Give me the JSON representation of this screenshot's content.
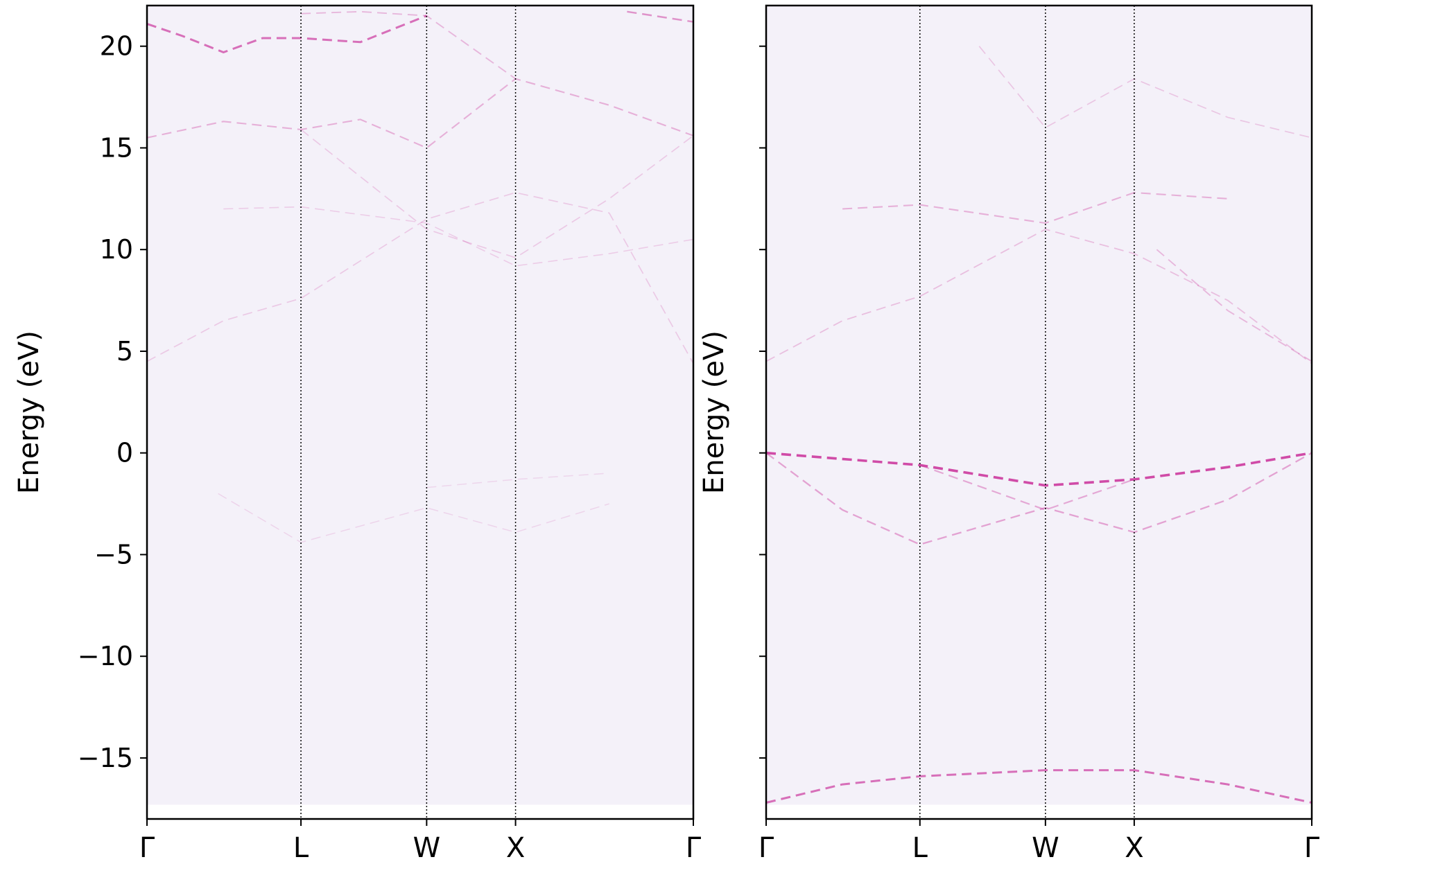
{
  "chart_data": [
    {
      "type": "heatmap",
      "panel": "left",
      "ylabel": "Energy (eV)",
      "xlabel": "",
      "title": "",
      "ylim": [
        -18.0,
        22.0
      ],
      "yticks": [
        20,
        15,
        10,
        5,
        0,
        -5,
        -10,
        -15
      ],
      "ytick_labels": [
        "20",
        "15",
        "10",
        "5",
        "0",
        "−5",
        "−10",
        "−15"
      ],
      "kpoints": [
        {
          "label": "Γ",
          "k": 0.0
        },
        {
          "label": "L",
          "k": 0.866
        },
        {
          "label": "W",
          "k": 1.573
        },
        {
          "label": "X",
          "k": 2.073
        },
        {
          "label": "Γ",
          "k": 3.073
        }
      ],
      "grid": "dotted vertical lines at high-symmetry points",
      "colormap": "white-to-magenta spectral weight",
      "background_color": "#f4f1f9",
      "intensity_color": "#cc3d9f",
      "data_floor_energy": -17.3,
      "bands": [
        {
          "name": "band-upper-a",
          "weight": 0.3,
          "points": [
            [
              0,
              15.5
            ],
            [
              0.43,
              16.3
            ],
            [
              0.866,
              15.9
            ],
            [
              1.2,
              16.4
            ],
            [
              1.573,
              15.0
            ],
            [
              2.073,
              18.4
            ],
            [
              2.6,
              17.1
            ],
            [
              3.073,
              15.6
            ]
          ]
        },
        {
          "name": "band-upper-b",
          "weight": 0.75,
          "points": [
            [
              0,
              21.1
            ],
            [
              0.2,
              20.5
            ],
            [
              0.43,
              19.7
            ],
            [
              0.65,
              20.4
            ],
            [
              0.866,
              20.4
            ],
            [
              1.2,
              20.2
            ],
            [
              1.573,
              21.5
            ]
          ]
        },
        {
          "name": "band-upper-c",
          "weight": 0.25,
          "points": [
            [
              0.866,
              21.6
            ],
            [
              1.2,
              21.7
            ],
            [
              1.573,
              21.5
            ],
            [
              2.073,
              18.4
            ]
          ]
        },
        {
          "name": "band-upper-d",
          "weight": 0.5,
          "points": [
            [
              2.7,
              21.7
            ],
            [
              3.073,
              21.2
            ]
          ]
        },
        {
          "name": "band-mid-a",
          "weight": 0.12,
          "points": [
            [
              0,
              4.5
            ],
            [
              0.43,
              6.5
            ],
            [
              0.866,
              7.6
            ],
            [
              1.573,
              11.5
            ],
            [
              2.073,
              12.8
            ],
            [
              2.6,
              11.8
            ],
            [
              3.073,
              4.4
            ]
          ]
        },
        {
          "name": "band-mid-b",
          "weight": 0.1,
          "points": [
            [
              0.43,
              12.0
            ],
            [
              0.866,
              12.1
            ],
            [
              1.573,
              11.3
            ],
            [
              2.073,
              9.2
            ],
            [
              2.6,
              9.8
            ],
            [
              3.073,
              10.5
            ]
          ]
        },
        {
          "name": "band-mid-c",
          "weight": 0.12,
          "points": [
            [
              0.866,
              15.9
            ],
            [
              1.573,
              11.0
            ],
            [
              2.073,
              9.6
            ],
            [
              2.6,
              12.5
            ],
            [
              3.073,
              15.6
            ]
          ]
        },
        {
          "name": "band-low-a",
          "weight": 0.05,
          "points": [
            [
              0.4,
              -2.0
            ],
            [
              0.866,
              -4.4
            ],
            [
              1.573,
              -2.7
            ],
            [
              2.073,
              -3.9
            ],
            [
              2.6,
              -2.5
            ]
          ]
        },
        {
          "name": "band-low-b",
          "weight": 0.04,
          "points": [
            [
              1.573,
              -1.7
            ],
            [
              2.073,
              -1.3
            ],
            [
              2.6,
              -1.0
            ]
          ]
        }
      ]
    },
    {
      "type": "heatmap",
      "panel": "right",
      "ylabel": "Energy (eV)",
      "xlabel": "",
      "title": "",
      "ylim": [
        -18.0,
        22.0
      ],
      "yticks": [
        20,
        15,
        10,
        5,
        0,
        -5,
        -10,
        -15
      ],
      "ytick_labels": [],
      "kpoints": [
        {
          "label": "Γ",
          "k": 0.0
        },
        {
          "label": "L",
          "k": 0.866
        },
        {
          "label": "W",
          "k": 1.573
        },
        {
          "label": "X",
          "k": 2.073
        },
        {
          "label": "Γ",
          "k": 3.073
        }
      ],
      "grid": "dotted vertical lines at high-symmetry points",
      "colormap": "white-to-magenta spectral weight",
      "background_color": "#f4f1f9",
      "intensity_color": "#cc3d9f",
      "data_floor_energy": -17.3,
      "bands": [
        {
          "name": "band-valence-top",
          "weight": 1.0,
          "points": [
            [
              0,
              0.0
            ],
            [
              0.866,
              -0.6
            ],
            [
              1.573,
              -1.6
            ],
            [
              2.073,
              -1.3
            ],
            [
              2.6,
              -0.7
            ],
            [
              3.073,
              0.0
            ]
          ]
        },
        {
          "name": "band-valence-2",
          "weight": 0.4,
          "points": [
            [
              0,
              0.0
            ],
            [
              0.43,
              -2.8
            ],
            [
              0.866,
              -4.5
            ],
            [
              1.573,
              -2.7
            ],
            [
              2.073,
              -3.9
            ],
            [
              2.6,
              -2.3
            ],
            [
              3.073,
              0.0
            ]
          ]
        },
        {
          "name": "band-valence-3",
          "weight": 0.35,
          "points": [
            [
              0.866,
              -0.6
            ],
            [
              1.573,
              -2.8
            ],
            [
              2.073,
              -1.3
            ]
          ]
        },
        {
          "name": "band-bottom",
          "weight": 0.75,
          "points": [
            [
              0,
              -17.2
            ],
            [
              0.43,
              -16.3
            ],
            [
              0.866,
              -15.9
            ],
            [
              1.573,
              -15.6
            ],
            [
              2.073,
              -15.6
            ],
            [
              2.6,
              -16.3
            ],
            [
              3.073,
              -17.2
            ]
          ]
        },
        {
          "name": "band-cond-a",
          "weight": 0.3,
          "points": [
            [
              0.43,
              12.0
            ],
            [
              0.866,
              12.2
            ],
            [
              1.573,
              11.3
            ],
            [
              2.073,
              12.8
            ],
            [
              2.6,
              12.5
            ]
          ]
        },
        {
          "name": "band-cond-b",
          "weight": 0.2,
          "points": [
            [
              0,
              4.5
            ],
            [
              0.43,
              6.5
            ],
            [
              0.866,
              7.7
            ],
            [
              1.573,
              11.0
            ],
            [
              2.073,
              9.8
            ],
            [
              2.6,
              7.5
            ],
            [
              3.073,
              4.4
            ]
          ]
        },
        {
          "name": "band-cond-c",
          "weight": 0.15,
          "points": [
            [
              1.2,
              20.0
            ],
            [
              1.573,
              16.0
            ],
            [
              2.073,
              18.4
            ],
            [
              2.6,
              16.5
            ],
            [
              3.073,
              15.5
            ]
          ]
        },
        {
          "name": "band-cond-d",
          "weight": 0.25,
          "points": [
            [
              2.2,
              10.0
            ],
            [
              2.6,
              7.0
            ],
            [
              3.073,
              4.5
            ]
          ]
        }
      ]
    }
  ]
}
